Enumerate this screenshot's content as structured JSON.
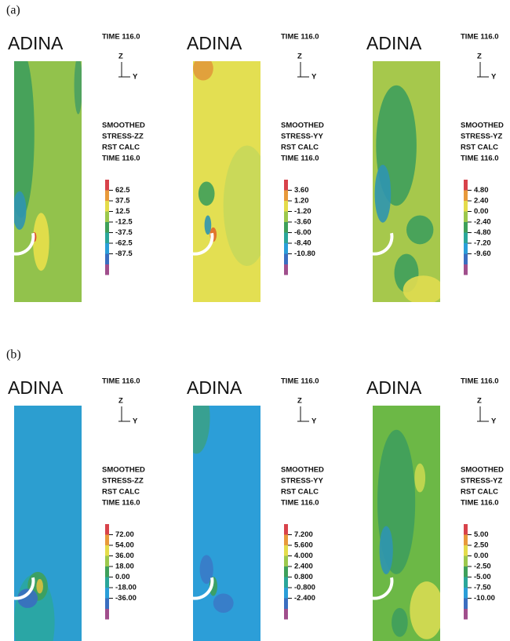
{
  "panels": [
    {
      "label": "(a)",
      "plots": [
        {
          "logo": "ADINA",
          "time": "TIME 116.0",
          "axis_z": "Z",
          "axis_y": "Y",
          "info": [
            "SMOOTHED",
            "STRESS-ZZ",
            "RST CALC",
            "TIME 116.0"
          ],
          "scale": [
            "62.5",
            "37.5",
            "12.5",
            "-12.5",
            "-37.5",
            "-62.5",
            "-87.5"
          ]
        },
        {
          "logo": "ADINA",
          "time": "TIME 116.0",
          "axis_z": "Z",
          "axis_y": "Y",
          "info": [
            "SMOOTHED",
            "STRESS-YY",
            "RST CALC",
            "TIME 116.0"
          ],
          "scale": [
            "3.60",
            "1.20",
            "-1.20",
            "-3.60",
            "-6.00",
            "-8.40",
            "-10.80"
          ]
        },
        {
          "logo": "ADINA",
          "time": "TIME 116.0",
          "axis_z": "Z",
          "axis_y": "Y",
          "info": [
            "SMOOTHED",
            "STRESS-YZ",
            "RST CALC",
            "TIME 116.0"
          ],
          "scale": [
            "4.80",
            "2.40",
            "0.00",
            "-2.40",
            "-4.80",
            "-7.20",
            "-9.60"
          ]
        }
      ]
    },
    {
      "label": "(b)",
      "plots": [
        {
          "logo": "ADINA",
          "time": "TIME 116.0",
          "axis_z": "Z",
          "axis_y": "Y",
          "info": [
            "SMOOTHED",
            "STRESS-ZZ",
            "RST CALC",
            "TIME 116.0"
          ],
          "scale": [
            "72.00",
            "54.00",
            "36.00",
            "18.00",
            "0.00",
            "-18.00",
            "-36.00"
          ]
        },
        {
          "logo": "ADINA",
          "time": "TIME 116.0",
          "axis_z": "Z",
          "axis_y": "Y",
          "info": [
            "SMOOTHED",
            "STRESS-YY",
            "RST CALC",
            "TIME 116.0"
          ],
          "scale": [
            "7.200",
            "5.600",
            "4.000",
            "2.400",
            "0.800",
            "-0.800",
            "-2.400"
          ]
        },
        {
          "logo": "ADINA",
          "time": "TIME 116.0",
          "axis_z": "Z",
          "axis_y": "Y",
          "info": [
            "SMOOTHED",
            "STRESS-YZ",
            "RST CALC",
            "TIME 116.0"
          ],
          "scale": [
            "5.00",
            "2.50",
            "0.00",
            "-2.50",
            "-5.00",
            "-7.50",
            "-10.00"
          ]
        }
      ]
    }
  ]
}
